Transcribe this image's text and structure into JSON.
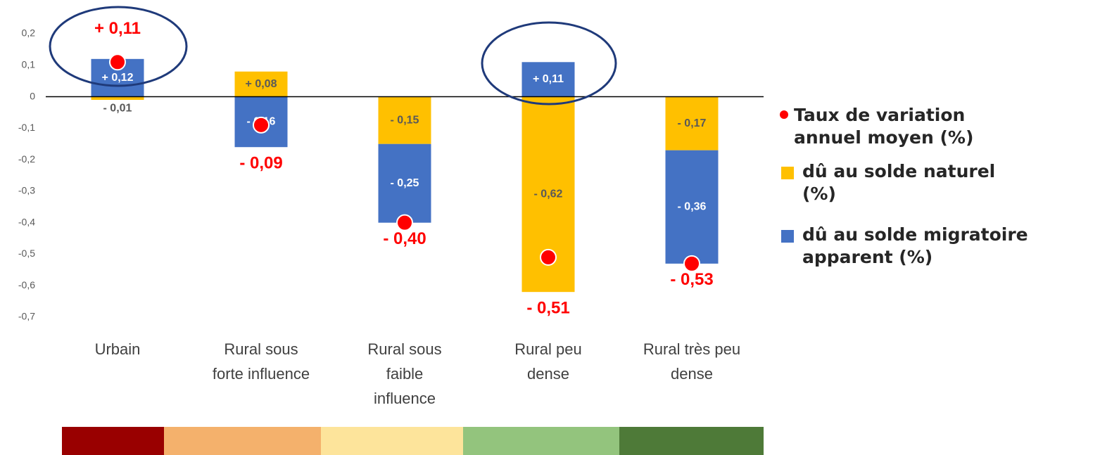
{
  "chart_data": {
    "type": "stacked_bar",
    "categories": [
      [
        "Urbain"
      ],
      [
        "Rural sous",
        "forte influence"
      ],
      [
        "Rural sous",
        "faible",
        "influence"
      ],
      [
        "Rural peu",
        "dense"
      ],
      [
        "Rural très peu",
        "dense"
      ]
    ],
    "series": [
      {
        "name": "dû au solde naturel (%)",
        "color": "#FFC000",
        "label_color": "#595959",
        "values": [
          -0.01,
          0.08,
          -0.15,
          -0.62,
          -0.17
        ],
        "value_labels": [
          "- 0,01",
          "+ 0,08",
          "- 0,15",
          "- 0,62",
          "- 0,17"
        ]
      },
      {
        "name": "dû au solde migratoire apparent (%)",
        "color": "#4472C4",
        "label_color": "#ffffff",
        "values": [
          0.12,
          -0.16,
          -0.25,
          0.11,
          -0.36
        ],
        "value_labels": [
          "+ 0,12",
          "- 0,16",
          "- 0,25",
          "+ 0,11",
          "- 0,36"
        ]
      }
    ],
    "totals": {
      "name": "Taux de variation annuel moyen (%)",
      "color": "#FF0000",
      "values": [
        0.11,
        -0.09,
        -0.4,
        -0.51,
        -0.53
      ],
      "value_labels": [
        "+ 0,11",
        "- 0,09",
        "- 0,40",
        "- 0,51",
        "- 0,53"
      ]
    },
    "ylim": [
      -0.7,
      0.2
    ],
    "yticks": [
      {
        "value": 0.2,
        "label": "0,2"
      },
      {
        "value": 0.1,
        "label": "0,1"
      },
      0,
      {
        "value": -0.1,
        "label": "-0,1"
      },
      {
        "value": -0.2,
        "label": "-0,2"
      },
      {
        "value": -0.3,
        "label": "-0,3"
      },
      {
        "value": -0.4,
        "label": "-0,4"
      },
      {
        "value": -0.5,
        "label": "-0,5"
      },
      {
        "value": -0.6,
        "label": "-0,6"
      },
      {
        "value": -0.7,
        "label": "-0,7"
      }
    ]
  }
}
